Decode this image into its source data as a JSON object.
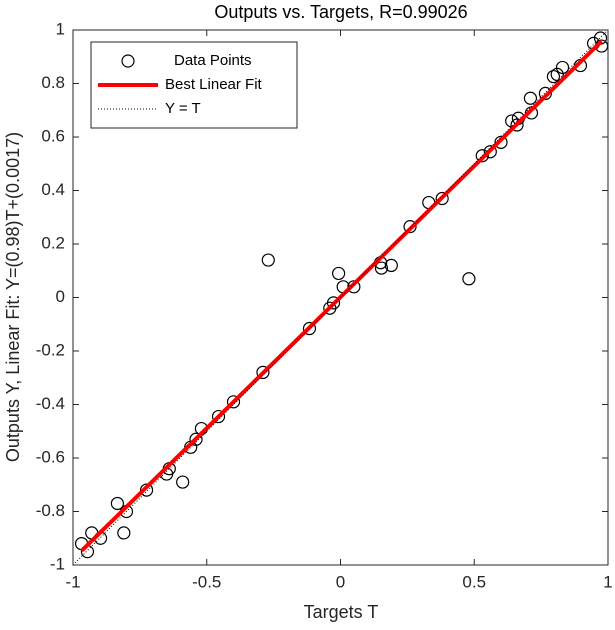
{
  "chart_data": {
    "type": "scatter",
    "title": "Outputs vs. Targets, R=0.99026",
    "xlabel": "Targets T",
    "ylabel": "Outputs Y,  Linear Fit: Y=(0.98)T+(0.0017)",
    "xlim": [
      -1,
      1
    ],
    "ylim": [
      -1,
      1
    ],
    "xticks": [
      -1,
      -0.5,
      0,
      0.5,
      1
    ],
    "yticks": [
      -1,
      -0.8,
      -0.6,
      -0.4,
      -0.2,
      0,
      0.2,
      0.4,
      0.6,
      0.8,
      1
    ],
    "legend": "upper left",
    "series": [
      {
        "name": "Data Points",
        "type": "scatter",
        "color": "#000000",
        "x": [
          -0.968,
          -0.946,
          -0.93,
          -0.897,
          -0.834,
          -0.81,
          -0.8,
          -0.725,
          -0.65,
          -0.64,
          -0.59,
          -0.56,
          -0.54,
          -0.52,
          -0.456,
          -0.4,
          -0.29,
          -0.27,
          -0.116,
          -0.04,
          -0.026,
          -0.007,
          0.01,
          0.05,
          0.15,
          0.153,
          0.19,
          0.26,
          0.33,
          0.38,
          0.48,
          0.53,
          0.56,
          0.6,
          0.64,
          0.66,
          0.665,
          0.71,
          0.714,
          0.766,
          0.796,
          0.81,
          0.83,
          0.897,
          0.946,
          0.972,
          0.976
        ],
        "values": [
          -0.92,
          -0.95,
          -0.88,
          -0.9,
          -0.77,
          -0.88,
          -0.8,
          -0.72,
          -0.66,
          -0.64,
          -0.69,
          -0.56,
          -0.53,
          -0.49,
          -0.445,
          -0.39,
          -0.28,
          0.14,
          -0.116,
          -0.04,
          -0.02,
          0.09,
          0.04,
          0.04,
          0.13,
          0.11,
          0.12,
          0.265,
          0.355,
          0.37,
          0.07,
          0.53,
          0.545,
          0.58,
          0.66,
          0.645,
          0.67,
          0.745,
          0.69,
          0.763,
          0.826,
          0.834,
          0.86,
          0.867,
          0.95,
          0.97,
          0.94
        ]
      },
      {
        "name": "Best Linear Fit",
        "type": "line",
        "color": "#ff0000",
        "dash": "solid",
        "x": [
          -0.968,
          0.976
        ],
        "values": [
          -0.947,
          0.958
        ]
      },
      {
        "name": "Y = T",
        "type": "line",
        "color": "#000000",
        "dash": "dotted",
        "x": [
          -1,
          1
        ],
        "values": [
          -1,
          1
        ]
      }
    ]
  }
}
